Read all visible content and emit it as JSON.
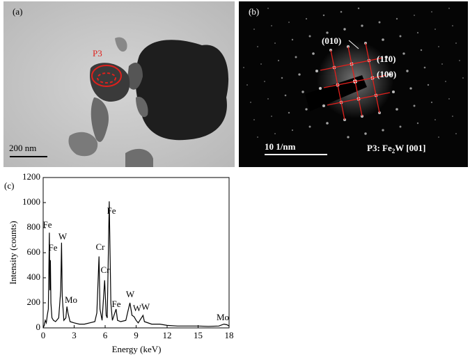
{
  "panels": {
    "a": {
      "label": "(a)",
      "particle": "P3",
      "scale_bar": "200 nm"
    },
    "b": {
      "label": "(b)",
      "zone_010": "(010)",
      "zone_110": "(110)",
      "zone_100": "(100)",
      "scale_bar": "10 1/nm",
      "phase": {
        "prefix": "P3: Fe",
        "sub": "2",
        "suffix": "W [001]"
      }
    }
  },
  "chart_data": {
    "type": "line",
    "panel_label": "(c)",
    "x_label": "Energy (keV)",
    "y_label": "Intensity (counts)",
    "x": [
      0,
      0.1,
      0.2,
      0.3,
      0.4,
      0.5,
      0.6,
      0.65,
      0.7,
      0.75,
      0.85,
      1.0,
      1.2,
      1.5,
      1.7,
      1.78,
      1.85,
      2.0,
      2.2,
      2.3,
      2.4,
      2.6,
      3.0,
      3.5,
      4.0,
      4.5,
      5.0,
      5.2,
      5.41,
      5.5,
      5.7,
      5.95,
      6.1,
      6.2,
      6.4,
      6.55,
      6.7,
      7.06,
      7.2,
      7.5,
      8.0,
      8.2,
      8.4,
      8.6,
      8.8,
      9.0,
      9.2,
      9.67,
      9.8,
      10.5,
      11.3,
      12,
      13,
      14,
      15,
      16,
      17,
      17.5,
      17.8,
      18
    ],
    "values": [
      0,
      20,
      60,
      40,
      100,
      150,
      760,
      300,
      540,
      200,
      80,
      60,
      50,
      80,
      300,
      680,
      250,
      60,
      80,
      170,
      120,
      50,
      40,
      30,
      30,
      40,
      50,
      120,
      570,
      150,
      60,
      380,
      100,
      80,
      1010,
      200,
      60,
      150,
      60,
      50,
      60,
      130,
      200,
      100,
      90,
      60,
      40,
      100,
      50,
      30,
      30,
      20,
      15,
      15,
      15,
      12,
      15,
      30,
      25,
      15
    ],
    "color": "#000000",
    "xlim": [
      0,
      18
    ],
    "xticks": [
      0,
      3,
      6,
      9,
      12,
      15,
      18
    ],
    "ylim": [
      0,
      1200
    ],
    "yticks": [
      0,
      200,
      400,
      600,
      800,
      1000,
      1200
    ],
    "annotations": [
      "Fe",
      "Fe",
      "W",
      "Mo",
      "Cr",
      "Cr",
      "Fe",
      "Fe",
      "W",
      "W",
      "W",
      "Mo"
    ]
  }
}
